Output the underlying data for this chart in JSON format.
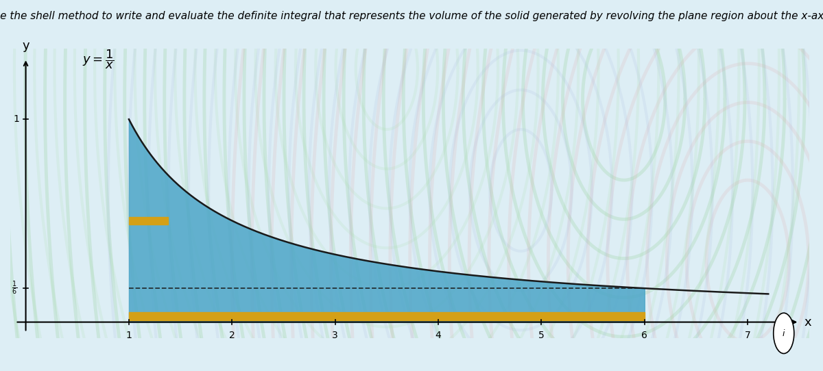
{
  "title": "Use the shell method to write and evaluate the definite integral that represents the volume of the solid generated by revolving the plane region about the x-axis.",
  "x_min": 1,
  "x_max": 6,
  "fill_color": "#4da6c8",
  "fill_alpha": 0.85,
  "gold_color": "#d4a017",
  "curve_color": "#1a1a1a",
  "dashed_color": "#1a1a1a",
  "axis_x_label": "x",
  "axis_y_label": "y",
  "x_ticks": [
    1,
    2,
    3,
    4,
    5,
    6,
    7
  ],
  "xlim": [
    -0.15,
    7.6
  ],
  "ylim": [
    -0.08,
    1.35
  ],
  "bg_color": "#ddeef5",
  "title_fontsize": 11
}
